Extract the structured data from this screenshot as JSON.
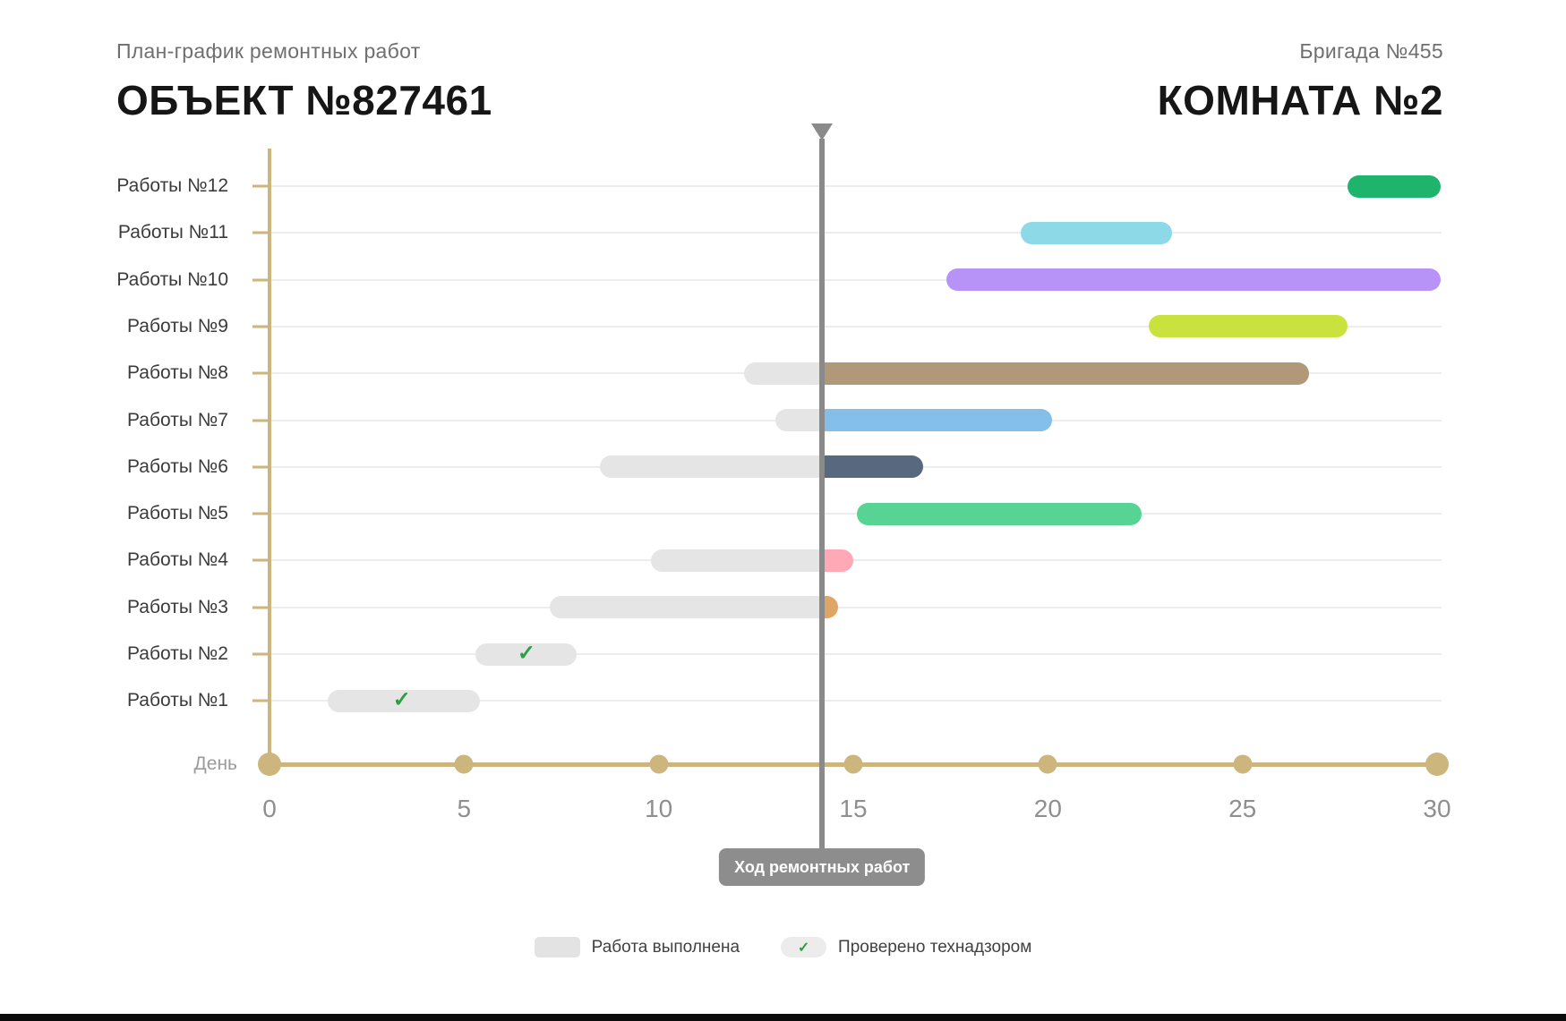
{
  "header": {
    "subtitle_left": "План-график ремонтных работ",
    "title_left": "ОБЪЕКТ №827461",
    "subtitle_right": "Бригада №455",
    "title_right": "КОМНАТА №2"
  },
  "chart_data": {
    "type": "bar",
    "variant": "gantt",
    "title": "План-график ремонтных работ — Объект №827461",
    "xlabel": "День",
    "xlim": [
      0,
      30
    ],
    "x_ticks": [
      0,
      5,
      10,
      15,
      20,
      25,
      30
    ],
    "grid": true,
    "now_line": {
      "day": 14.2,
      "label": "Ход ремонтных работ"
    },
    "tasks": [
      {
        "label": "Работы №12",
        "start": 27.7,
        "end": 30.1,
        "color": "#1fb46c",
        "done_until": null,
        "checked": false,
        "check_day": null
      },
      {
        "label": "Работы №11",
        "start": 19.3,
        "end": 23.2,
        "color": "#8ed9e7",
        "done_until": null,
        "checked": false,
        "check_day": null
      },
      {
        "label": "Работы №10",
        "start": 17.4,
        "end": 30.1,
        "color": "#b793f7",
        "done_until": null,
        "checked": false,
        "check_day": null
      },
      {
        "label": "Работы №9",
        "start": 22.6,
        "end": 27.7,
        "color": "#c9e23e",
        "done_until": null,
        "checked": false,
        "check_day": null
      },
      {
        "label": "Работы №8",
        "start": 12.2,
        "end": 26.7,
        "color": "#b19878",
        "done_until": 14.2,
        "checked": false,
        "check_day": null
      },
      {
        "label": "Работы №7",
        "start": 13.0,
        "end": 20.1,
        "color": "#84bfe9",
        "done_until": 14.2,
        "checked": false,
        "check_day": null
      },
      {
        "label": "Работы №6",
        "start": 8.5,
        "end": 16.8,
        "color": "#57697e",
        "done_until": 14.2,
        "checked": false,
        "check_day": null
      },
      {
        "label": "Работы №5",
        "start": 15.1,
        "end": 22.4,
        "color": "#57d494",
        "done_until": null,
        "checked": false,
        "check_day": null
      },
      {
        "label": "Работы №4",
        "start": 9.8,
        "end": 15.0,
        "color": "#ffa9b6",
        "done_until": 14.2,
        "checked": false,
        "check_day": null
      },
      {
        "label": "Работы №3",
        "start": 7.2,
        "end": 14.6,
        "color": "#dfa567",
        "done_until": 14.2,
        "checked": false,
        "check_day": null
      },
      {
        "label": "Работы №2",
        "start": 5.3,
        "end": 7.9,
        "color": null,
        "done_until": 7.9,
        "checked": true,
        "check_day": 6.6
      },
      {
        "label": "Работы №1",
        "start": 1.5,
        "end": 5.4,
        "color": null,
        "done_until": 5.4,
        "checked": true,
        "check_day": 3.4
      }
    ]
  },
  "legend": {
    "completed_label": "Работа выполнена",
    "checked_label": "Проверено технадзором",
    "check_icon": "✓"
  },
  "colors": {
    "axis": "#cdb57e",
    "grid": "#ededed",
    "done_fill": "#e5e5e5",
    "now_line": "#8a8a8a",
    "tooltip_bg": "#8d8d8d",
    "check_green": "#2f9e44",
    "title_text": "#161616",
    "muted_text": "#6f6f6f"
  }
}
